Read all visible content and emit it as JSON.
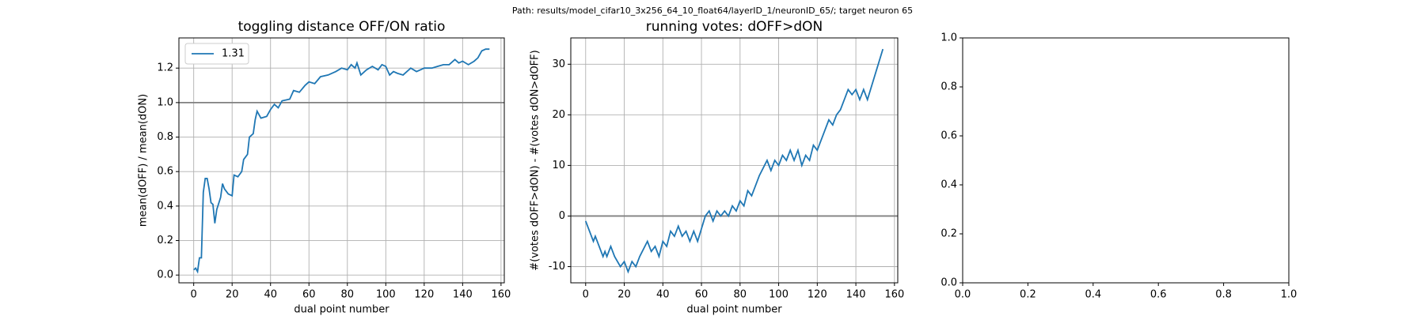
{
  "suptitle": "Path: results/model_cifar10_3x256_64_10_float64/layerID_1/neuronID_65/; target neuron 65",
  "chart_data": [
    {
      "type": "line",
      "title": "toggling distance OFF/ON ratio",
      "xlabel": "dual point number",
      "ylabel": "mean(dOFF) / mean(dON)",
      "x": [
        0,
        1,
        2,
        3,
        4,
        5,
        6,
        7,
        8,
        9,
        10,
        11,
        12,
        14,
        15,
        16,
        18,
        20,
        21,
        23,
        25,
        26,
        28,
        29,
        31,
        32,
        33,
        35,
        38,
        40,
        42,
        44,
        46,
        50,
        52,
        55,
        58,
        60,
        63,
        66,
        70,
        74,
        77,
        80,
        82,
        84,
        85,
        87,
        90,
        93,
        96,
        98,
        100,
        102,
        104,
        106,
        109,
        111,
        113,
        116,
        118,
        120,
        124,
        127,
        130,
        133,
        136,
        138,
        140,
        143,
        146,
        148,
        150,
        152,
        154
      ],
      "series": [
        {
          "name": "1.31",
          "color": "#1f77b4",
          "values": [
            0.03,
            0.04,
            0.02,
            0.1,
            0.1,
            0.48,
            0.56,
            0.56,
            0.5,
            0.42,
            0.41,
            0.3,
            0.38,
            0.45,
            0.53,
            0.5,
            0.47,
            0.46,
            0.58,
            0.57,
            0.6,
            0.67,
            0.7,
            0.8,
            0.82,
            0.9,
            0.95,
            0.91,
            0.92,
            0.96,
            0.99,
            0.97,
            1.01,
            1.02,
            1.07,
            1.06,
            1.1,
            1.12,
            1.11,
            1.15,
            1.16,
            1.18,
            1.2,
            1.19,
            1.22,
            1.2,
            1.23,
            1.16,
            1.19,
            1.21,
            1.19,
            1.22,
            1.21,
            1.16,
            1.18,
            1.17,
            1.16,
            1.18,
            1.2,
            1.18,
            1.19,
            1.2,
            1.2,
            1.21,
            1.22,
            1.22,
            1.25,
            1.23,
            1.24,
            1.22,
            1.24,
            1.26,
            1.3,
            1.31,
            1.31
          ]
        }
      ],
      "xlim": [
        -7.7,
        161.7
      ],
      "xticks": [
        0,
        20,
        40,
        60,
        80,
        100,
        120,
        140,
        160
      ],
      "ylim": [
        -0.045,
        1.375
      ],
      "yticks": [
        {
          "value": 0,
          "label": "0.0"
        },
        0.2,
        0.4,
        0.6,
        0.8,
        {
          "value": 1,
          "label": "1.0"
        },
        1.2
      ],
      "hline": 1,
      "hline_color": "#808080",
      "grid": true,
      "legend": "upper left"
    },
    {
      "type": "line",
      "title": "running votes: dOFF>dON",
      "xlabel": "dual point number",
      "ylabel": "#(votes dOFF>dON) - #(votes dON>dOFF)",
      "x": [
        0,
        3,
        4,
        5,
        6,
        8,
        9,
        10,
        11,
        13,
        15,
        18,
        20,
        22,
        24,
        26,
        28,
        32,
        34,
        36,
        38,
        40,
        42,
        44,
        46,
        48,
        50,
        52,
        54,
        56,
        58,
        62,
        64,
        66,
        68,
        70,
        72,
        74,
        76,
        78,
        80,
        82,
        84,
        86,
        88,
        90,
        94,
        96,
        98,
        100,
        102,
        104,
        106,
        108,
        110,
        112,
        114,
        116,
        118,
        120,
        124,
        126,
        128,
        130,
        132,
        134,
        136,
        138,
        140,
        142,
        144,
        146,
        154
      ],
      "series": [
        {
          "name": "running votes",
          "color": "#1f77b4",
          "values": [
            -1,
            -4,
            -5,
            -4,
            -5,
            -7,
            -8,
            -7,
            -8,
            -6,
            -8,
            -10,
            -9,
            -11,
            -9,
            -10,
            -8,
            -5,
            -7,
            -6,
            -8,
            -5,
            -6,
            -3,
            -4,
            -2,
            -4,
            -3,
            -5,
            -3,
            -5,
            0,
            1,
            -1,
            1,
            0,
            1,
            0,
            2,
            1,
            3,
            2,
            5,
            4,
            6,
            8,
            11,
            9,
            11,
            10,
            12,
            11,
            13,
            11,
            13,
            10,
            12,
            11,
            14,
            13,
            17,
            19,
            18,
            20,
            21,
            23,
            25,
            24,
            25,
            23,
            25,
            23,
            33
          ]
        }
      ],
      "xlim": [
        -7.7,
        161.7
      ],
      "xticks": [
        0,
        20,
        40,
        60,
        80,
        100,
        120,
        140,
        160
      ],
      "ylim": [
        -13.2,
        35.2
      ],
      "yticks": [
        -10,
        0,
        10,
        20,
        30
      ],
      "hline": 0,
      "hline_color": "#808080",
      "grid": true
    },
    {
      "type": "blank",
      "xlim": [
        0,
        1
      ],
      "xticks": [
        {
          "value": 0,
          "label": "0.0"
        },
        0.2,
        0.4,
        0.6,
        0.8,
        {
          "value": 1,
          "label": "1.0"
        }
      ],
      "ylim": [
        0,
        1
      ],
      "yticks": [
        {
          "value": 0,
          "label": "0.0"
        },
        0.2,
        0.4,
        0.6,
        0.8,
        {
          "value": 1,
          "label": "1.0"
        }
      ],
      "grid": false
    }
  ]
}
